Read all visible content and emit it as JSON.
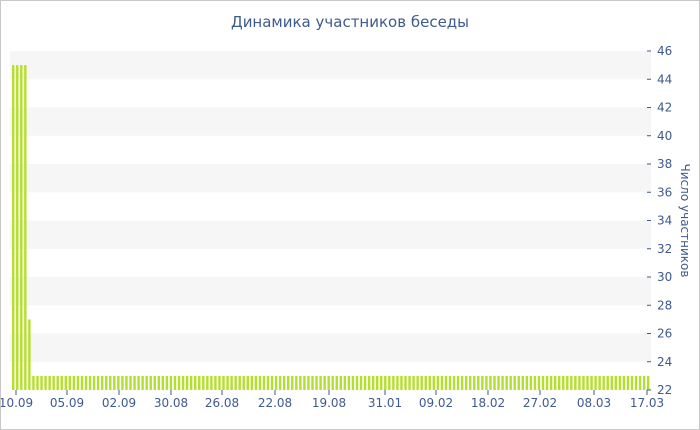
{
  "chart_data": {
    "type": "bar",
    "title": "Динамика участников беседы",
    "xlabel": "",
    "ylabel": "Число участников",
    "ylim": [
      22,
      46
    ],
    "y_ticks": [
      22,
      24,
      26,
      28,
      30,
      32,
      34,
      36,
      38,
      40,
      42,
      44,
      46
    ],
    "x_tick_labels": [
      "10.09",
      "05.09",
      "02.09",
      "30.08",
      "26.08",
      "22.08",
      "19.08",
      "31.01",
      "09.02",
      "18.02",
      "27.02",
      "08.03",
      "17.03"
    ],
    "grid": "horizontal bands",
    "bar_color": "#b5df2f",
    "values": [
      45,
      45,
      45,
      45,
      27,
      23,
      23,
      23,
      23,
      23,
      23,
      23,
      23,
      23,
      23,
      23,
      23,
      23,
      23,
      23,
      23,
      23,
      23,
      23,
      23,
      23,
      23,
      23,
      23,
      23,
      23,
      23,
      23,
      23,
      23,
      23,
      23,
      23,
      23,
      23,
      23,
      23,
      23,
      23,
      23,
      23,
      23,
      23,
      23,
      23,
      23,
      23,
      23,
      23,
      23,
      23,
      23,
      23,
      23,
      23,
      23,
      23,
      23,
      23,
      23,
      23,
      23,
      23,
      23,
      23,
      23,
      23,
      23,
      23,
      23,
      23,
      23,
      23,
      23,
      23,
      23,
      23,
      23,
      23,
      23,
      23,
      23,
      23,
      23,
      23,
      23,
      23,
      23,
      23,
      23,
      23,
      23,
      23,
      23,
      23,
      23,
      23,
      23,
      23,
      23,
      23,
      23,
      23,
      23,
      23,
      23,
      23,
      23,
      23,
      23,
      23,
      23,
      23,
      23,
      23,
      23,
      23,
      23,
      23,
      23,
      23,
      23,
      23,
      23,
      23,
      23,
      23,
      23,
      23,
      23,
      23,
      23,
      23,
      23,
      23,
      23,
      23,
      23,
      23,
      23,
      23,
      23,
      23,
      23,
      23,
      23,
      23,
      23,
      23,
      23,
      23,
      23,
      23
    ]
  }
}
